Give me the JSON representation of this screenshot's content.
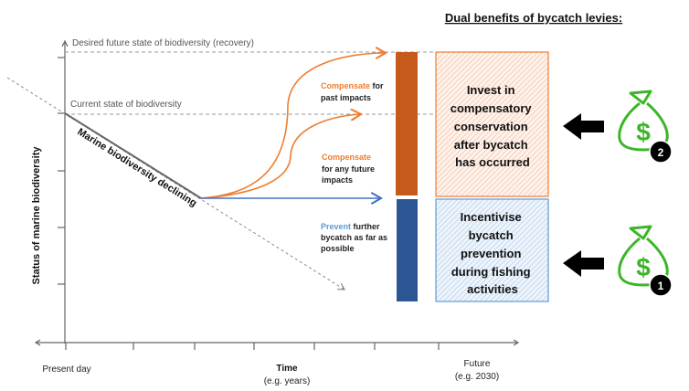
{
  "title": "Dual benefits of bycatch levies:",
  "y_axis_label": "Status of marine biodiversity",
  "x_axis": {
    "start_label": "Present day",
    "middle_label": "Time",
    "middle_sublabel": "(e.g. years)",
    "end_label": "Future",
    "end_sublabel": "(e.g. 2030)"
  },
  "reference_lines": {
    "desired": "Desired future state of biodiversity (recovery)",
    "current": "Current state of biodiversity"
  },
  "trend_label": "Marine biodiversity declining",
  "annotations": {
    "past": {
      "highlight": "Compensate",
      "rest1": " for",
      "line2": "past impacts"
    },
    "future": {
      "highlight": "Compensate",
      "line2": "for any future",
      "line3": "impacts"
    },
    "prevent": {
      "highlight": "Prevent",
      "rest1": " further",
      "line2": "bycatch as far as",
      "line3": "possible"
    }
  },
  "boxes": {
    "compensate": [
      "Invest in",
      "compensatory",
      "conservation",
      "after bycatch",
      "has occurred"
    ],
    "prevent": [
      "Incentivise",
      "bycatch",
      "prevention",
      "during fishing",
      "activities"
    ]
  },
  "badges": {
    "compensate": "2",
    "prevent": "1"
  },
  "icons": {
    "money_bag": "money-bag-icon",
    "arrow": "arrow-left-icon"
  },
  "colors": {
    "orange": "#ed7d31",
    "orange_dark": "#c55a1a",
    "blue": "#4472c4",
    "blue_dark": "#2b5593",
    "blue_light": "#5b9bd5",
    "green": "#3cb528"
  }
}
